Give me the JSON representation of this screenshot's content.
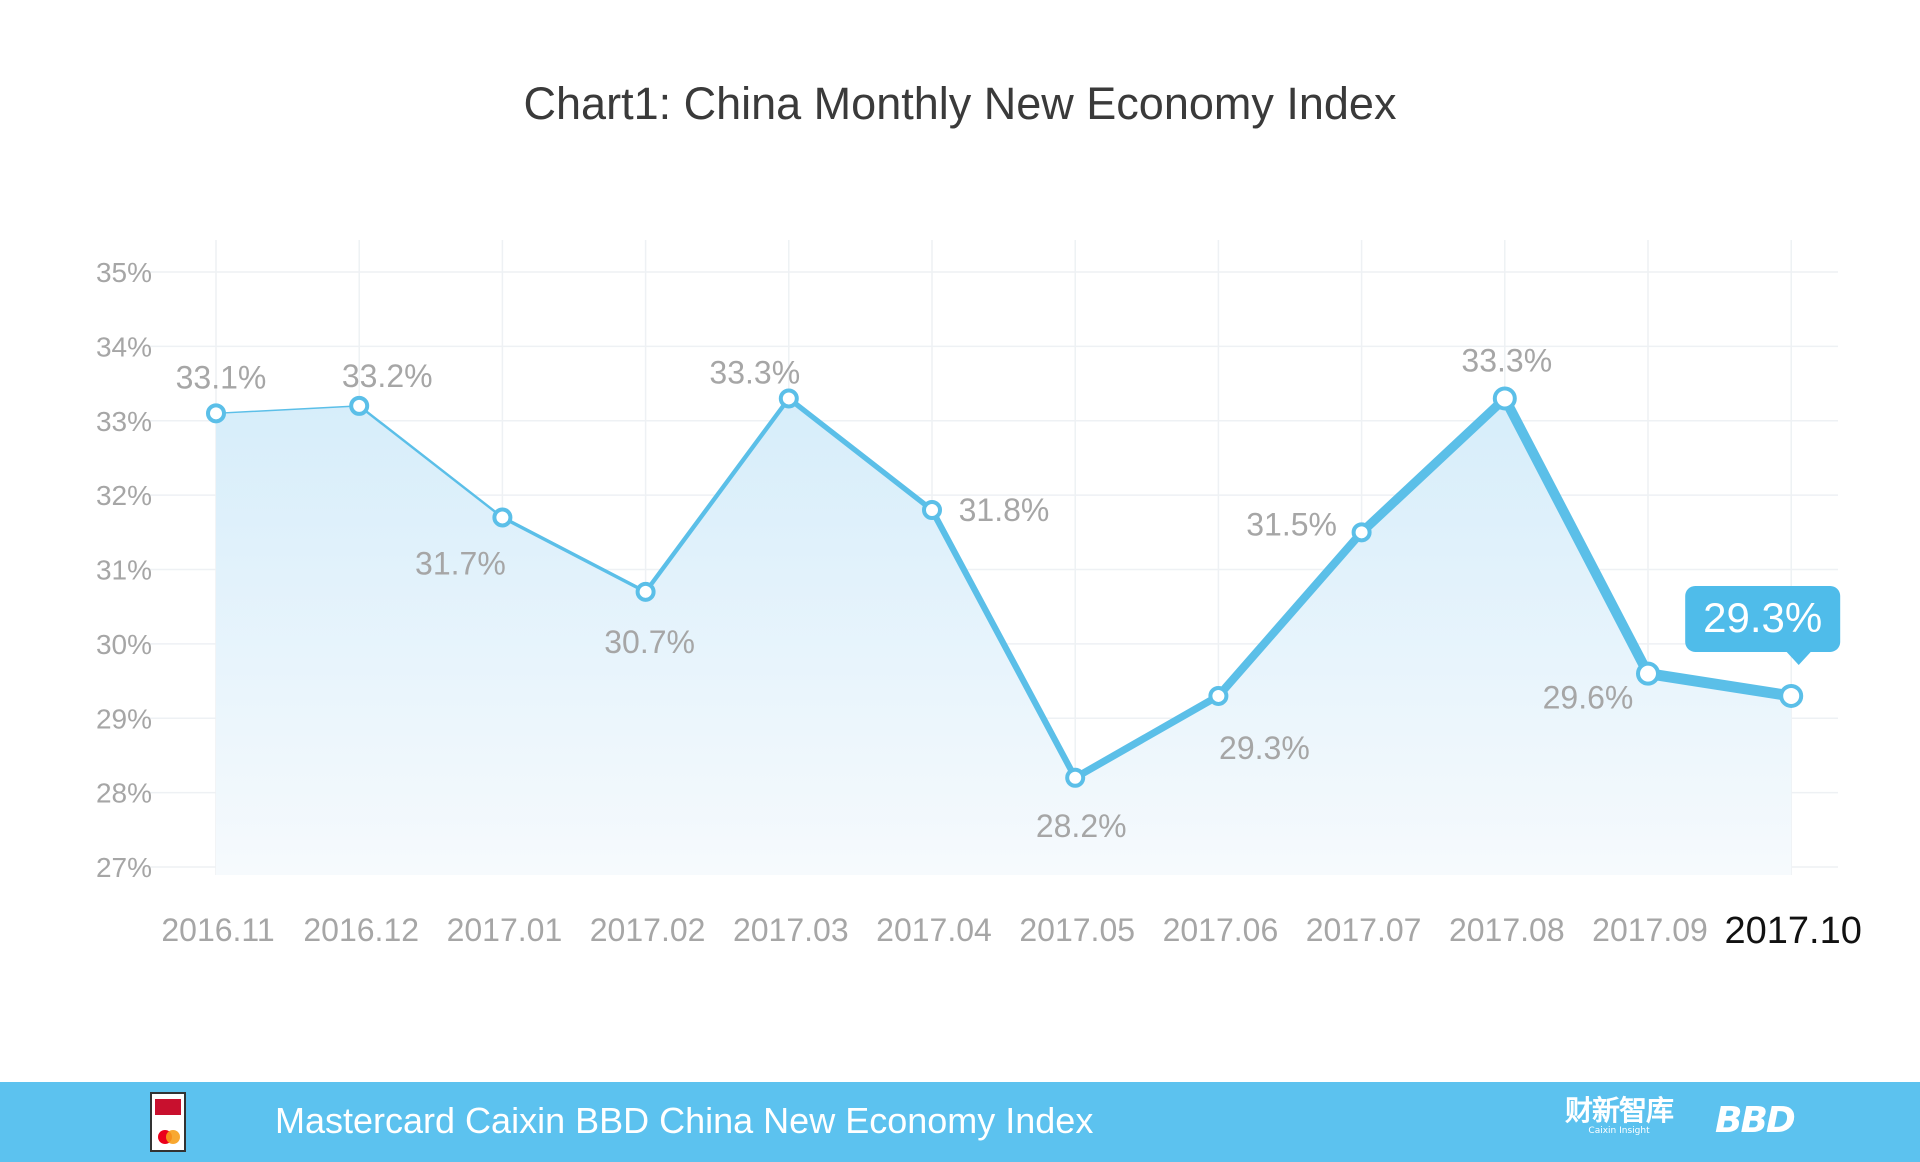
{
  "title": "Chart1: China Monthly New Economy Index",
  "footer": {
    "title": "Mastercard Caixin BBD China New Economy Index",
    "caixin_cn": "财新智库",
    "caixin_en": "Caixin Insight",
    "bbd": "BBD"
  },
  "colors": {
    "line": "#5bbfe8",
    "fill_top": "#d8eefa",
    "grid": "#eef1f4",
    "label": "#a6a6a6",
    "footer": "#5cc2ef"
  },
  "chart_data": {
    "type": "area",
    "title": "Chart1: China Monthly New Economy Index",
    "xlabel": "",
    "ylabel": "",
    "categories": [
      "2016.11",
      "2016.12",
      "2017.01",
      "2017.02",
      "2017.03",
      "2017.04",
      "2017.05",
      "2017.06",
      "2017.07",
      "2017.08",
      "2017.09",
      "2017.10"
    ],
    "values": [
      33.1,
      33.2,
      31.7,
      30.7,
      33.3,
      31.8,
      28.2,
      29.3,
      31.5,
      33.3,
      29.6,
      29.3
    ],
    "data_labels": [
      "33.1%",
      "33.2%",
      "31.7%",
      "30.7%",
      "33.3%",
      "31.8%",
      "28.2%",
      "29.3%",
      "31.5%",
      "33.3%",
      "29.6%",
      "29.3%"
    ],
    "ylim": [
      27,
      35
    ],
    "yticks": [
      "27%",
      "28%",
      "29%",
      "30%",
      "31%",
      "32%",
      "33%",
      "34%",
      "35%"
    ],
    "grid": true,
    "highlight": {
      "category": "2017.10",
      "label": "29.3%"
    }
  }
}
